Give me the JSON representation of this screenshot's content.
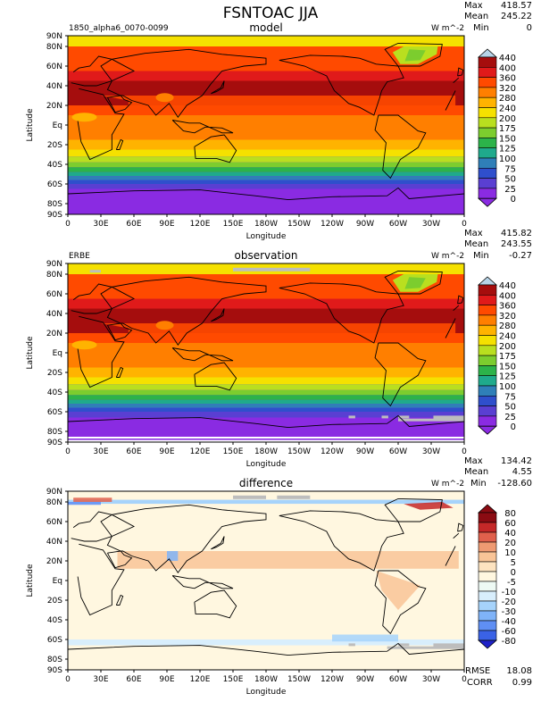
{
  "figure_title": "FSNTOAC JJA",
  "chart_data": [
    {
      "type": "heatmap",
      "panel": "model",
      "title": "model",
      "case_label": "1850_alpha6_0070-0099",
      "units": "W m^-2",
      "stats": {
        "max_label": "Max",
        "max": "418.57",
        "mean_label": "Mean",
        "mean": "245.22",
        "min_label": "Min",
        "min": "0"
      },
      "xlabel": "Longitude",
      "ylabel": "Latitude",
      "x_ticks": [
        "0",
        "30E",
        "60E",
        "90E",
        "120E",
        "150E",
        "180W",
        "150W",
        "120W",
        "90W",
        "60W",
        "30W",
        "0"
      ],
      "y_ticks": [
        "90N",
        "80N",
        "60N",
        "40N",
        "20N",
        "Eq",
        "20S",
        "40S",
        "60S",
        "80S",
        "90S"
      ],
      "y_tick_lat": [
        90,
        80,
        60,
        40,
        20,
        0,
        -20,
        -40,
        -60,
        -80,
        -90
      ],
      "colorbar_levels": [
        "440",
        "400",
        "360",
        "320",
        "280",
        "240",
        "200",
        "175",
        "150",
        "125",
        "100",
        "75",
        "50",
        "25",
        "0"
      ],
      "zonal_mean_bands": [
        {
          "lat_from": 90,
          "lat_to": 80,
          "value": 210
        },
        {
          "lat_from": 80,
          "lat_to": 70,
          "value": 330
        },
        {
          "lat_from": 70,
          "lat_to": 55,
          "value": 355
        },
        {
          "lat_from": 55,
          "lat_to": 45,
          "value": 375
        },
        {
          "lat_from": 45,
          "lat_to": 20,
          "value": 405
        },
        {
          "lat_from": 20,
          "lat_to": 10,
          "value": 345
        },
        {
          "lat_from": 10,
          "lat_to": -5,
          "value": 315
        },
        {
          "lat_from": -5,
          "lat_to": -15,
          "value": 295
        },
        {
          "lat_from": -15,
          "lat_to": -25,
          "value": 262
        },
        {
          "lat_from": -25,
          "lat_to": -32,
          "value": 220
        },
        {
          "lat_from": -32,
          "lat_to": -38,
          "value": 185
        },
        {
          "lat_from": -38,
          "lat_to": -43,
          "value": 160
        },
        {
          "lat_from": -43,
          "lat_to": -48,
          "value": 135
        },
        {
          "lat_from": -48,
          "lat_to": -52,
          "value": 110
        },
        {
          "lat_from": -52,
          "lat_to": -56,
          "value": 85
        },
        {
          "lat_from": -56,
          "lat_to": -60,
          "value": 60
        },
        {
          "lat_from": -60,
          "lat_to": -65,
          "value": 35
        },
        {
          "lat_from": -65,
          "lat_to": -90,
          "value": 10
        }
      ]
    },
    {
      "type": "heatmap",
      "panel": "observation",
      "title": "observation",
      "case_label": "ERBE",
      "units": "W m^-2",
      "stats": {
        "max_label": "Max",
        "max": "415.82",
        "mean_label": "Mean",
        "mean": "243.55",
        "min_label": "Min",
        "min": "-0.27"
      },
      "xlabel": "Longitude",
      "ylabel": "Latitude",
      "x_ticks": [
        "0",
        "30E",
        "60E",
        "90E",
        "120E",
        "150E",
        "180W",
        "150W",
        "120W",
        "90W",
        "60W",
        "30W",
        "0"
      ],
      "y_ticks": [
        "90N",
        "80N",
        "60N",
        "40N",
        "20N",
        "Eq",
        "20S",
        "40S",
        "60S",
        "80S",
        "90S"
      ],
      "y_tick_lat": [
        90,
        80,
        60,
        40,
        20,
        0,
        -20,
        -40,
        -60,
        -80,
        -90
      ],
      "colorbar_levels": [
        "440",
        "400",
        "360",
        "320",
        "280",
        "240",
        "200",
        "175",
        "150",
        "125",
        "100",
        "75",
        "50",
        "25",
        "0"
      ],
      "zonal_mean_bands": [
        {
          "lat_from": 90,
          "lat_to": 80,
          "value": 230
        },
        {
          "lat_from": 80,
          "lat_to": 70,
          "value": 330
        },
        {
          "lat_from": 70,
          "lat_to": 55,
          "value": 350
        },
        {
          "lat_from": 55,
          "lat_to": 45,
          "value": 372
        },
        {
          "lat_from": 45,
          "lat_to": 20,
          "value": 402
        },
        {
          "lat_from": 20,
          "lat_to": 10,
          "value": 345
        },
        {
          "lat_from": 10,
          "lat_to": -5,
          "value": 318
        },
        {
          "lat_from": -5,
          "lat_to": -15,
          "value": 290
        },
        {
          "lat_from": -15,
          "lat_to": -25,
          "value": 258
        },
        {
          "lat_from": -25,
          "lat_to": -32,
          "value": 215
        },
        {
          "lat_from": -32,
          "lat_to": -38,
          "value": 182
        },
        {
          "lat_from": -38,
          "lat_to": -43,
          "value": 155
        },
        {
          "lat_from": -43,
          "lat_to": -48,
          "value": 130
        },
        {
          "lat_from": -48,
          "lat_to": -52,
          "value": 105
        },
        {
          "lat_from": -52,
          "lat_to": -56,
          "value": 80
        },
        {
          "lat_from": -56,
          "lat_to": -60,
          "value": 55
        },
        {
          "lat_from": -60,
          "lat_to": -66,
          "value": 30
        },
        {
          "lat_from": -66,
          "lat_to": -90,
          "value": 10
        }
      ]
    },
    {
      "type": "heatmap",
      "panel": "difference",
      "title": "difference",
      "case_label": "",
      "units": "W m^-2",
      "stats": {
        "max_label": "Max",
        "max": "134.42",
        "mean_label": "Mean",
        "mean": "4.55",
        "min_label": "Min",
        "min": "-128.60"
      },
      "rmse_label": "RMSE",
      "rmse": "18.08",
      "corr_label": "CORR",
      "corr": "0.99",
      "xlabel": "Longitude",
      "ylabel": "Latitude",
      "x_ticks": [
        "0",
        "30E",
        "60E",
        "90E",
        "120E",
        "150E",
        "180W",
        "150W",
        "120W",
        "90W",
        "60W",
        "30W",
        "0"
      ],
      "y_ticks": [
        "90N",
        "80N",
        "60N",
        "40N",
        "20N",
        "Eq",
        "20S",
        "40S",
        "60S",
        "80S",
        "90S"
      ],
      "y_tick_lat": [
        90,
        80,
        60,
        40,
        20,
        0,
        -20,
        -40,
        -60,
        -80,
        -90
      ],
      "colorbar_levels": [
        "80",
        "60",
        "40",
        "20",
        "10",
        "5",
        "0",
        "-5",
        "-10",
        "-20",
        "-30",
        "-40",
        "-60",
        "-80"
      ],
      "zonal_mean_bands": [
        {
          "lat_from": 90,
          "lat_to": 82,
          "value": 2
        },
        {
          "lat_from": 82,
          "lat_to": 78,
          "value": -20
        },
        {
          "lat_from": 78,
          "lat_to": 60,
          "value": 3
        },
        {
          "lat_from": 60,
          "lat_to": 20,
          "value": 2
        },
        {
          "lat_from": 20,
          "lat_to": -20,
          "value": 1
        },
        {
          "lat_from": -20,
          "lat_to": -60,
          "value": 2
        },
        {
          "lat_from": -60,
          "lat_to": -66,
          "value": -8
        },
        {
          "lat_from": -66,
          "lat_to": -90,
          "value": 0
        }
      ]
    }
  ],
  "colors": {
    "abs_palette": [
      "#ffffff",
      "#8a2be2",
      "#5a3fd2",
      "#2f4fcc",
      "#2f7fb8",
      "#1faa8c",
      "#2cb34a",
      "#7ccd2e",
      "#b9df1f",
      "#f5e100",
      "#ffb300",
      "#ff7f00",
      "#ff4a00",
      "#e01a1a",
      "#a50d0d"
    ],
    "diff_palette": [
      "#1f22c8",
      "#3a62e6",
      "#5f8ff4",
      "#7fb3f8",
      "#a6d3fb",
      "#d8eefc",
      "#eefaf4",
      "#fff7e0",
      "#fde3c0",
      "#f9c497",
      "#ef9a72",
      "#e0604c",
      "#c42828",
      "#8b0b12"
    ],
    "land_outline": "#000000",
    "missing": "#bdbdbd"
  }
}
